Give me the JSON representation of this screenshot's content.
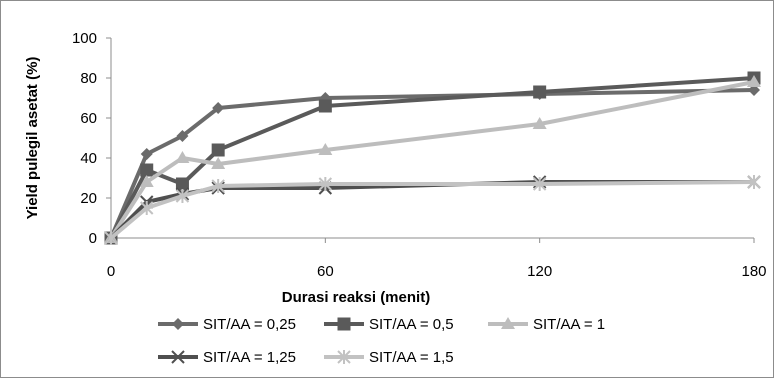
{
  "chart_data": {
    "type": "line",
    "title": "",
    "xlabel": "Durasi reaksi (menit)",
    "ylabel": "Yield pulegil asetat (%)",
    "xlim": [
      0,
      180
    ],
    "ylim": [
      0,
      100
    ],
    "x_ticks": [
      "0",
      "60",
      "120",
      "180"
    ],
    "y_ticks": [
      "0",
      "20",
      "40",
      "60",
      "80",
      "100"
    ],
    "grid": false,
    "legend_position": "bottom",
    "series": [
      {
        "name": "SIT/AA = 0,25",
        "marker": "diamond",
        "color": "#6b6b6b",
        "x": [
          0,
          10,
          20,
          30,
          60,
          120,
          180
        ],
        "y": [
          0,
          42,
          51,
          65,
          70,
          72,
          74
        ]
      },
      {
        "name": "SIT/AA = 0,5",
        "marker": "square",
        "color": "#5a5a5a",
        "x": [
          0,
          10,
          20,
          30,
          60,
          120,
          180
        ],
        "y": [
          0,
          34,
          27,
          44,
          66,
          73,
          80
        ]
      },
      {
        "name": "SIT/AA = 1",
        "marker": "triangle",
        "color": "#bdbdbd",
        "x": [
          0,
          10,
          20,
          30,
          60,
          120,
          180
        ],
        "y": [
          0,
          28,
          40,
          37,
          44,
          57,
          78
        ]
      },
      {
        "name": "SIT/AA = 1,25",
        "marker": "x",
        "color": "#4f4f4f",
        "x": [
          0,
          10,
          20,
          30,
          60,
          120,
          180
        ],
        "y": [
          0,
          18,
          22,
          25,
          25,
          28,
          28
        ]
      },
      {
        "name": "SIT/AA = 1,5",
        "marker": "star",
        "color": "#c2c2c2",
        "x": [
          0,
          10,
          20,
          30,
          60,
          120,
          180
        ],
        "y": [
          0,
          15,
          21,
          26,
          27,
          27,
          28
        ]
      }
    ]
  }
}
